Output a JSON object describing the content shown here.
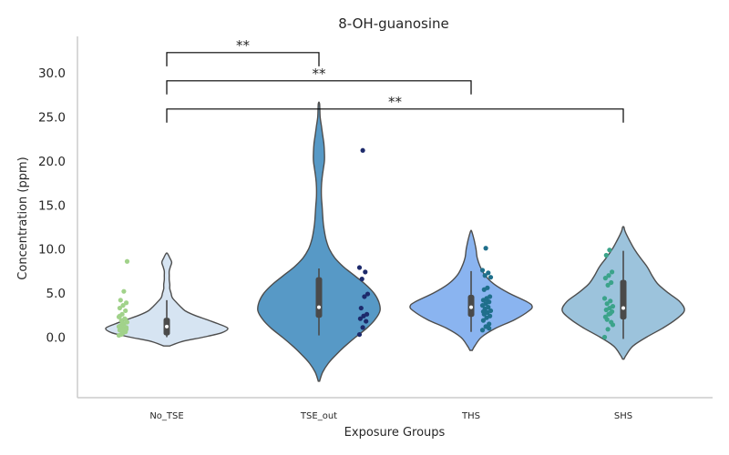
{
  "chart_data": {
    "type": "violin",
    "title": "8-OH-guanosine",
    "xlabel": "Exposure Groups",
    "ylabel": "Concentration (ppm)",
    "ylim": [
      -7,
      34
    ],
    "yticks": [
      "0.0",
      "5.0",
      "10.0",
      "15.0",
      "20.0",
      "25.0",
      "30.0"
    ],
    "grid": false,
    "categories": [
      "No_TSE",
      "TSE_out",
      "THS",
      "SHS"
    ],
    "violin_colors": [
      "#d6e4f2",
      "#5799c6",
      "#8ab4f0",
      "#9cc3dc"
    ],
    "point_colors": [
      "#a1d28a",
      "#1d2a6b",
      "#1f6f8b",
      "#3ba38a"
    ],
    "groups": [
      {
        "name": "No_TSE",
        "extent": [
          -1,
          9.5
        ],
        "box": {
          "q1": 0.2,
          "median": 1.2,
          "q3": 2.2,
          "whisker_low": 0.0,
          "whisker_high": 4.2
        },
        "density": [
          [
            -1,
            0.05
          ],
          [
            -0.5,
            0.25
          ],
          [
            0,
            0.6
          ],
          [
            0.5,
            0.9
          ],
          [
            1,
            1
          ],
          [
            1.5,
            0.85
          ],
          [
            2,
            0.65
          ],
          [
            2.5,
            0.45
          ],
          [
            3,
            0.3
          ],
          [
            3.5,
            0.22
          ],
          [
            4,
            0.15
          ],
          [
            4.5,
            0.09
          ],
          [
            5,
            0.07
          ],
          [
            5.5,
            0.05
          ],
          [
            6,
            0.05
          ],
          [
            6.5,
            0.04
          ],
          [
            7,
            0.04
          ],
          [
            7.5,
            0.04
          ],
          [
            8,
            0.06
          ],
          [
            8.5,
            0.08
          ],
          [
            9,
            0.05
          ],
          [
            9.5,
            0.01
          ]
        ],
        "points": [
          0.2,
          0.4,
          0.6,
          0.8,
          1.0,
          1.1,
          1.3,
          1.5,
          1.7,
          1.9,
          2.1,
          2.3,
          2.6,
          3.0,
          3.3,
          3.6,
          3.9,
          4.2,
          5.2,
          8.6,
          0.3,
          0.7,
          1.2,
          1.6,
          2.0,
          2.4,
          0.5,
          0.9
        ]
      },
      {
        "name": "TSE_out",
        "extent": [
          -5,
          26.5
        ],
        "box": {
          "q1": 2.2,
          "median": 3.4,
          "q3": 6.8,
          "whisker_low": 0.2,
          "whisker_high": 7.8
        },
        "density": [
          [
            -5,
            0.01
          ],
          [
            -4,
            0.06
          ],
          [
            -3,
            0.15
          ],
          [
            -2,
            0.28
          ],
          [
            -1,
            0.43
          ],
          [
            0,
            0.6
          ],
          [
            1,
            0.78
          ],
          [
            2,
            0.92
          ],
          [
            3,
            1.0
          ],
          [
            4,
            0.98
          ],
          [
            5,
            0.9
          ],
          [
            6,
            0.76
          ],
          [
            7,
            0.58
          ],
          [
            8,
            0.4
          ],
          [
            9,
            0.26
          ],
          [
            10,
            0.17
          ],
          [
            11,
            0.12
          ],
          [
            12,
            0.09
          ],
          [
            13,
            0.07
          ],
          [
            14,
            0.06
          ],
          [
            15,
            0.05
          ],
          [
            16,
            0.04
          ],
          [
            17,
            0.04
          ],
          [
            18,
            0.05
          ],
          [
            19,
            0.07
          ],
          [
            20,
            0.09
          ],
          [
            21,
            0.09
          ],
          [
            22,
            0.08
          ],
          [
            23,
            0.06
          ],
          [
            24,
            0.04
          ],
          [
            25,
            0.02
          ],
          [
            26.5,
            0.01
          ]
        ],
        "points": [
          0.3,
          1.1,
          1.8,
          2.1,
          2.4,
          2.6,
          3.3,
          4.6,
          4.9,
          6.6,
          7.4,
          7.9,
          21.2
        ]
      },
      {
        "name": "THS",
        "extent": [
          -1.5,
          12
        ],
        "box": {
          "q1": 2.3,
          "median": 3.4,
          "q3": 4.8,
          "whisker_low": 0.6,
          "whisker_high": 7.5
        },
        "density": [
          [
            -1.5,
            0.02
          ],
          [
            -1,
            0.06
          ],
          [
            0,
            0.17
          ],
          [
            1,
            0.4
          ],
          [
            2,
            0.72
          ],
          [
            3,
            0.95
          ],
          [
            3.5,
            1.0
          ],
          [
            4,
            0.92
          ],
          [
            5,
            0.62
          ],
          [
            6,
            0.38
          ],
          [
            7,
            0.23
          ],
          [
            8,
            0.15
          ],
          [
            9,
            0.1
          ],
          [
            10,
            0.08
          ],
          [
            11,
            0.05
          ],
          [
            12,
            0.01
          ]
        ],
        "points": [
          0.8,
          1.2,
          1.5,
          1.9,
          2.2,
          2.4,
          2.6,
          2.8,
          3.0,
          3.2,
          3.4,
          3.6,
          3.8,
          4.0,
          4.2,
          4.4,
          4.6,
          5.4,
          5.6,
          6.8,
          7.0,
          7.3,
          7.6,
          10.1,
          1.0,
          2.9,
          4.3
        ]
      },
      {
        "name": "SHS",
        "extent": [
          -2.5,
          12.5
        ],
        "box": {
          "q1": 2.0,
          "median": 3.3,
          "q3": 6.5,
          "whisker_low": -0.2,
          "whisker_high": 9.8
        },
        "density": [
          [
            -2.5,
            0.01
          ],
          [
            -2,
            0.05
          ],
          [
            -1,
            0.16
          ],
          [
            0,
            0.38
          ],
          [
            1,
            0.64
          ],
          [
            2,
            0.86
          ],
          [
            3,
            1.0
          ],
          [
            4,
            0.93
          ],
          [
            5,
            0.74
          ],
          [
            6,
            0.57
          ],
          [
            7,
            0.47
          ],
          [
            8,
            0.39
          ],
          [
            9,
            0.28
          ],
          [
            10,
            0.18
          ],
          [
            11,
            0.1
          ],
          [
            12,
            0.03
          ],
          [
            12.5,
            0.01
          ]
        ],
        "points": [
          0.0,
          0.9,
          1.7,
          2.3,
          2.6,
          2.9,
          3.1,
          3.3,
          3.5,
          3.8,
          4.1,
          4.4,
          5.9,
          6.2,
          6.7,
          7.0,
          7.4,
          9.3,
          9.9,
          1.4,
          2.0,
          2.7
        ]
      }
    ],
    "annotations": [
      {
        "from": "No_TSE",
        "to": "TSE_out",
        "text": "**",
        "y": 32.3
      },
      {
        "from": "No_TSE",
        "to": "THS",
        "text": "**",
        "y": 29.1
      },
      {
        "from": "No_TSE",
        "to": "SHS",
        "text": "**",
        "y": 25.9
      }
    ]
  }
}
